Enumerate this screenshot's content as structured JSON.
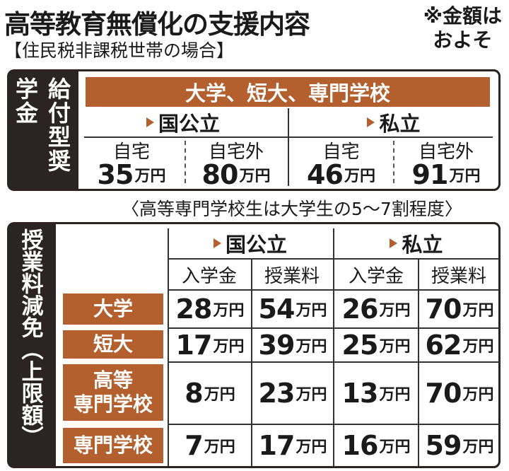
{
  "header": {
    "title": "高等教育無償化の支援内容",
    "subtitle": "【住民税非課税世帯の場合】",
    "note_line1": "※金額は",
    "note_line2": "およそ"
  },
  "scholarship": {
    "label": "給付型奨学金",
    "category_bar": "大学、短大、専門学校",
    "groups": [
      {
        "name": "国公立",
        "home_label": "自宅",
        "home_value": "35",
        "away_label": "自宅外",
        "away_value": "80"
      },
      {
        "name": "私立",
        "home_label": "自宅",
        "home_value": "46",
        "away_label": "自宅外",
        "away_value": "91"
      }
    ],
    "unit": "万円",
    "footnote": "〈高等専門学校生は大学生の5〜7割程度〉"
  },
  "tuition": {
    "label": "授業料減免（上限額）",
    "groups": [
      "国公立",
      "私立"
    ],
    "columns": [
      "入学金",
      "授業料",
      "入学金",
      "授業料"
    ],
    "unit": "万円",
    "rows": [
      {
        "label_line1": "大学",
        "label_line2": "",
        "values": [
          "28",
          "54",
          "26",
          "70"
        ]
      },
      {
        "label_line1": "短大",
        "label_line2": "",
        "values": [
          "17",
          "39",
          "25",
          "62"
        ]
      },
      {
        "label_line1": "高等",
        "label_line2": "専門学校",
        "values": [
          "8",
          "23",
          "13",
          "70"
        ]
      },
      {
        "label_line1": "専門学校",
        "label_line2": "",
        "values": [
          "7",
          "17",
          "16",
          "59"
        ]
      }
    ]
  }
}
